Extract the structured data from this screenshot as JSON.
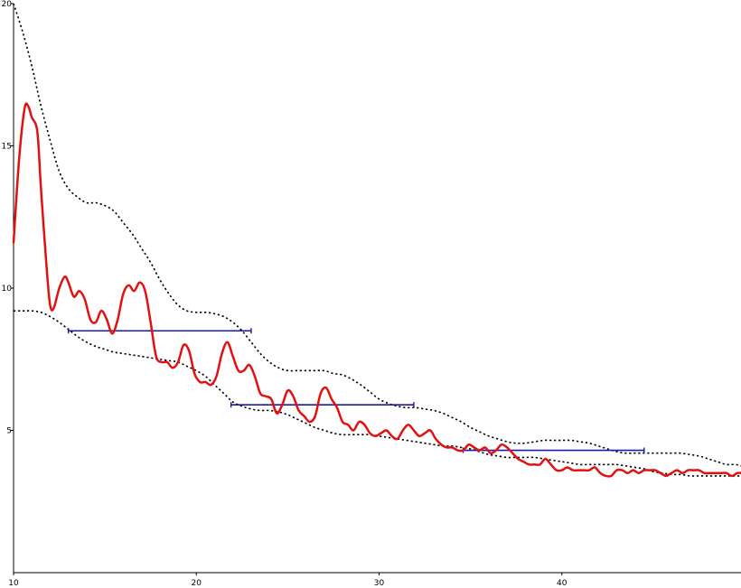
{
  "chart_data": {
    "type": "line",
    "title": "",
    "xlabel": "",
    "ylabel": "",
    "xlim": [
      10,
      49.8
    ],
    "ylim": [
      0,
      20
    ],
    "grid": false,
    "legend": "none",
    "x_ticks": [
      10,
      20,
      30,
      40
    ],
    "y_ticks": [
      5,
      10,
      15,
      20
    ],
    "x_tick_labels": [
      "10",
      "20",
      "30",
      "40"
    ],
    "y_tick_labels": [
      "5",
      "10",
      "15",
      "20"
    ],
    "colors": {
      "main": "#e41010",
      "bounds": "#000000",
      "segments": "#1a1aaa",
      "axes": "#000000"
    },
    "series": [
      {
        "role": "main",
        "style": "solid",
        "x": [
          10.0,
          10.3,
          10.6,
          10.8,
          11.0,
          11.3,
          11.5,
          11.8,
          12.0,
          12.2,
          12.5,
          12.8,
          13.0,
          13.3,
          13.6,
          13.9,
          14.2,
          14.5,
          14.8,
          15.1,
          15.4,
          15.7,
          16.0,
          16.3,
          16.6,
          16.9,
          17.2,
          17.5,
          17.8,
          18.1,
          18.4,
          18.7,
          19.0,
          19.3,
          19.6,
          19.9,
          20.2,
          20.5,
          20.8,
          21.1,
          21.4,
          21.7,
          22.0,
          22.3,
          22.6,
          22.9,
          23.2,
          23.5,
          23.8,
          24.1,
          24.4,
          24.7,
          25.0,
          25.3,
          25.6,
          25.9,
          26.2,
          26.5,
          26.8,
          27.1,
          27.4,
          27.7,
          28.0,
          28.3,
          28.6,
          28.9,
          29.2,
          29.5,
          29.8,
          30.1,
          30.4,
          30.7,
          31.0,
          31.3,
          31.6,
          31.9,
          32.2,
          32.5,
          32.8,
          33.1,
          33.4,
          33.7,
          34.0,
          34.3,
          34.6,
          34.9,
          35.2,
          35.5,
          35.8,
          36.1,
          36.4,
          36.7,
          37.0,
          37.3,
          37.6,
          37.9,
          38.2,
          38.5,
          38.8,
          39.1,
          39.4,
          39.7,
          40.0,
          40.3,
          40.6,
          40.9,
          41.2,
          41.5,
          41.8,
          42.1,
          42.4,
          42.7,
          43.0,
          43.3,
          43.6,
          43.9,
          44.2,
          44.5,
          44.8,
          45.1,
          45.4,
          45.7,
          46.0,
          46.3,
          46.6,
          46.9,
          47.2,
          47.5,
          47.8,
          48.1,
          48.4,
          48.7,
          49.0,
          49.3,
          49.6,
          49.8
        ],
        "y": [
          11.6,
          14.5,
          16.3,
          16.4,
          16.0,
          15.5,
          13.5,
          10.8,
          9.4,
          9.3,
          10.0,
          10.4,
          10.2,
          9.7,
          9.9,
          9.6,
          8.9,
          8.8,
          9.2,
          8.9,
          8.4,
          8.9,
          9.8,
          10.1,
          9.9,
          10.2,
          9.9,
          8.8,
          7.6,
          7.4,
          7.4,
          7.2,
          7.4,
          8.0,
          7.8,
          7.0,
          6.7,
          6.7,
          6.6,
          6.9,
          7.7,
          8.1,
          7.6,
          7.1,
          7.1,
          7.3,
          6.9,
          6.3,
          6.2,
          6.1,
          5.6,
          5.9,
          6.4,
          6.2,
          5.7,
          5.5,
          5.3,
          5.5,
          6.3,
          6.5,
          6.1,
          5.8,
          5.3,
          5.2,
          5.0,
          5.3,
          5.2,
          4.9,
          4.8,
          4.9,
          5.0,
          4.8,
          4.7,
          5.0,
          5.2,
          5.0,
          4.8,
          4.9,
          5.0,
          4.7,
          4.5,
          4.4,
          4.4,
          4.3,
          4.3,
          4.5,
          4.4,
          4.3,
          4.4,
          4.2,
          4.3,
          4.5,
          4.4,
          4.2,
          4.0,
          3.9,
          3.8,
          3.8,
          3.8,
          4.0,
          3.8,
          3.6,
          3.6,
          3.7,
          3.6,
          3.6,
          3.6,
          3.6,
          3.7,
          3.5,
          3.4,
          3.4,
          3.6,
          3.6,
          3.5,
          3.6,
          3.5,
          3.6,
          3.6,
          3.6,
          3.5,
          3.4,
          3.5,
          3.6,
          3.5,
          3.6,
          3.6,
          3.6,
          3.5,
          3.5,
          3.5,
          3.5,
          3.5,
          3.4,
          3.5,
          3.5
        ]
      },
      {
        "role": "upper-bound",
        "style": "dotted",
        "x": [
          10.0,
          10.5,
          11.0,
          11.5,
          12.0,
          12.5,
          13.0,
          13.5,
          14.0,
          14.5,
          15.0,
          15.5,
          16.0,
          16.5,
          17.0,
          17.5,
          18.0,
          18.5,
          19.0,
          19.5,
          20.0,
          20.5,
          21.0,
          21.5,
          22.0,
          22.5,
          23.0,
          23.5,
          24.0,
          24.5,
          25.0,
          25.5,
          26.0,
          26.5,
          27.0,
          27.5,
          28.0,
          28.5,
          29.0,
          29.5,
          30.0,
          30.5,
          31.0,
          31.5,
          32.0,
          32.5,
          33.0,
          33.5,
          34.0,
          34.5,
          35.0,
          35.5,
          36.0,
          36.5,
          37.0,
          37.5,
          38.0,
          38.5,
          39.0,
          39.5,
          40.0,
          40.5,
          41.0,
          41.5,
          42.0,
          42.5,
          43.0,
          43.5,
          44.0,
          44.5,
          45.0,
          45.5,
          46.0,
          46.5,
          47.0,
          47.5,
          48.0,
          48.5,
          49.0,
          49.5,
          49.8
        ],
        "y": [
          20.0,
          19.0,
          17.8,
          16.4,
          15.2,
          14.1,
          13.5,
          13.2,
          13.0,
          13.0,
          12.9,
          12.7,
          12.3,
          11.9,
          11.4,
          10.9,
          10.3,
          9.8,
          9.4,
          9.2,
          9.15,
          9.15,
          9.1,
          9.0,
          8.8,
          8.5,
          8.1,
          7.7,
          7.4,
          7.2,
          7.1,
          7.1,
          7.1,
          7.1,
          7.1,
          7.0,
          6.95,
          6.8,
          6.6,
          6.35,
          6.1,
          5.95,
          5.85,
          5.8,
          5.8,
          5.75,
          5.7,
          5.6,
          5.45,
          5.3,
          5.1,
          4.95,
          4.8,
          4.7,
          4.6,
          4.55,
          4.55,
          4.6,
          4.65,
          4.65,
          4.65,
          4.65,
          4.6,
          4.55,
          4.45,
          4.35,
          4.25,
          4.2,
          4.2,
          4.2,
          4.2,
          4.2,
          4.2,
          4.2,
          4.15,
          4.1,
          4.0,
          3.9,
          3.8,
          3.8,
          3.75
        ]
      },
      {
        "role": "lower-bound",
        "style": "dotted",
        "x": [
          10.0,
          10.5,
          11.0,
          11.5,
          12.0,
          12.5,
          13.0,
          13.5,
          14.0,
          14.5,
          15.0,
          15.5,
          16.0,
          16.5,
          17.0,
          17.5,
          18.0,
          18.5,
          19.0,
          19.5,
          20.0,
          20.5,
          21.0,
          21.5,
          22.0,
          22.5,
          23.0,
          23.5,
          24.0,
          24.5,
          25.0,
          25.5,
          26.0,
          26.5,
          27.0,
          27.5,
          28.0,
          28.5,
          29.0,
          29.5,
          30.0,
          30.5,
          31.0,
          31.5,
          32.0,
          32.5,
          33.0,
          33.5,
          34.0,
          34.5,
          35.0,
          35.5,
          36.0,
          36.5,
          37.0,
          37.5,
          38.0,
          38.5,
          39.0,
          39.5,
          40.0,
          40.5,
          41.0,
          41.5,
          42.0,
          42.5,
          43.0,
          43.5,
          44.0,
          44.5,
          45.0,
          45.5,
          46.0,
          46.5,
          47.0,
          47.5,
          48.0,
          48.5,
          49.0,
          49.5,
          49.8
        ],
        "y": [
          9.2,
          9.2,
          9.2,
          9.15,
          9.0,
          8.8,
          8.55,
          8.3,
          8.1,
          7.95,
          7.85,
          7.75,
          7.7,
          7.65,
          7.6,
          7.55,
          7.5,
          7.45,
          7.4,
          7.25,
          7.1,
          6.9,
          6.6,
          6.3,
          6.0,
          5.85,
          5.75,
          5.7,
          5.7,
          5.65,
          5.55,
          5.4,
          5.25,
          5.1,
          5.0,
          4.9,
          4.85,
          4.85,
          4.85,
          4.85,
          4.8,
          4.75,
          4.7,
          4.65,
          4.6,
          4.55,
          4.5,
          4.45,
          4.45,
          4.4,
          4.35,
          4.25,
          4.15,
          4.1,
          4.05,
          4.05,
          4.05,
          4.05,
          4.0,
          3.95,
          3.9,
          3.85,
          3.8,
          3.8,
          3.8,
          3.8,
          3.8,
          3.75,
          3.7,
          3.65,
          3.55,
          3.5,
          3.45,
          3.45,
          3.4,
          3.4,
          3.4,
          3.4,
          3.4,
          3.4,
          3.4
        ]
      }
    ],
    "segments": [
      {
        "x_start": 13.0,
        "x_end": 23.0,
        "y": 8.5
      },
      {
        "x_start": 21.9,
        "x_end": 31.9,
        "y": 5.9
      },
      {
        "x_start": 34.6,
        "x_end": 44.5,
        "y": 4.3
      }
    ]
  }
}
